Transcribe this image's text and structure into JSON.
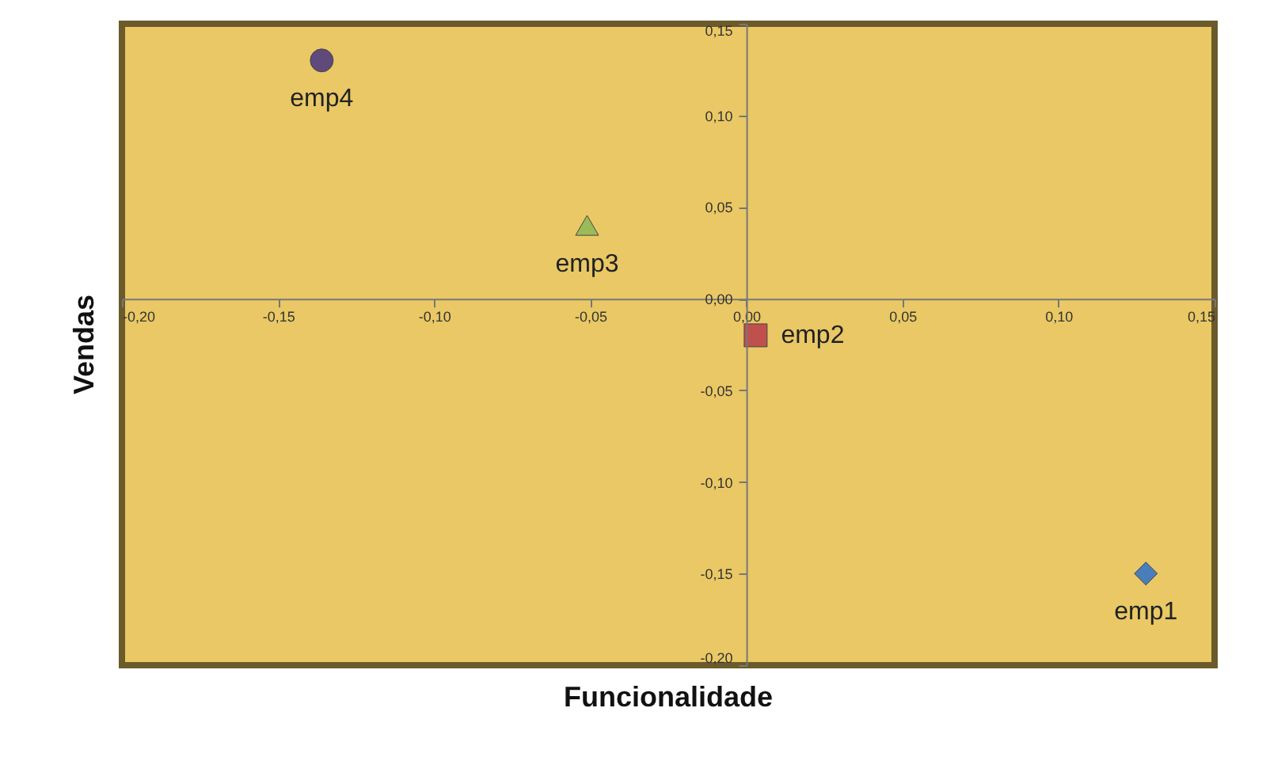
{
  "chart_data": {
    "type": "scatter",
    "xlabel": "Funcionalidade",
    "ylabel": "Vendas",
    "xlim": [
      -0.2,
      0.15
    ],
    "ylim": [
      -0.2,
      0.15
    ],
    "xticks": [
      {
        "value": -0.2,
        "label": "-0,20"
      },
      {
        "value": -0.15,
        "label": "-0,15"
      },
      {
        "value": -0.1,
        "label": "-0,10"
      },
      {
        "value": -0.05,
        "label": "-0,05"
      },
      {
        "value": 0,
        "label": "0,00"
      },
      {
        "value": 0.05,
        "label": "0,05"
      },
      {
        "value": 0.1,
        "label": "0,10"
      },
      {
        "value": 0.15,
        "label": "0,15"
      }
    ],
    "yticks": [
      {
        "value": -0.2,
        "label": "-0,20"
      },
      {
        "value": -0.15,
        "label": "-0,15"
      },
      {
        "value": -0.1,
        "label": "-0,10"
      },
      {
        "value": -0.05,
        "label": "-0,05"
      },
      {
        "value": 0,
        "label": "0,00"
      },
      {
        "value": 0.05,
        "label": "0,05"
      },
      {
        "value": 0.1,
        "label": "0,10"
      },
      {
        "value": 0.15,
        "label": "0,15"
      }
    ],
    "grid": false,
    "series": [
      {
        "name": "emp1",
        "color": "#4a7ebb",
        "marker": "diamond",
        "x": [
          0.128
        ],
        "values": [
          -0.15
        ]
      },
      {
        "name": "emp2",
        "color": "#c0504d",
        "marker": "square",
        "x": [
          0.003
        ],
        "values": [
          -0.02
        ]
      },
      {
        "name": "emp3",
        "color": "#9bbb59",
        "marker": "triangle",
        "x": [
          -0.051
        ],
        "values": [
          0.04
        ]
      },
      {
        "name": "emp4",
        "color": "#604a7b",
        "marker": "circle",
        "x": [
          -0.136
        ],
        "values": [
          0.13
        ]
      }
    ]
  }
}
